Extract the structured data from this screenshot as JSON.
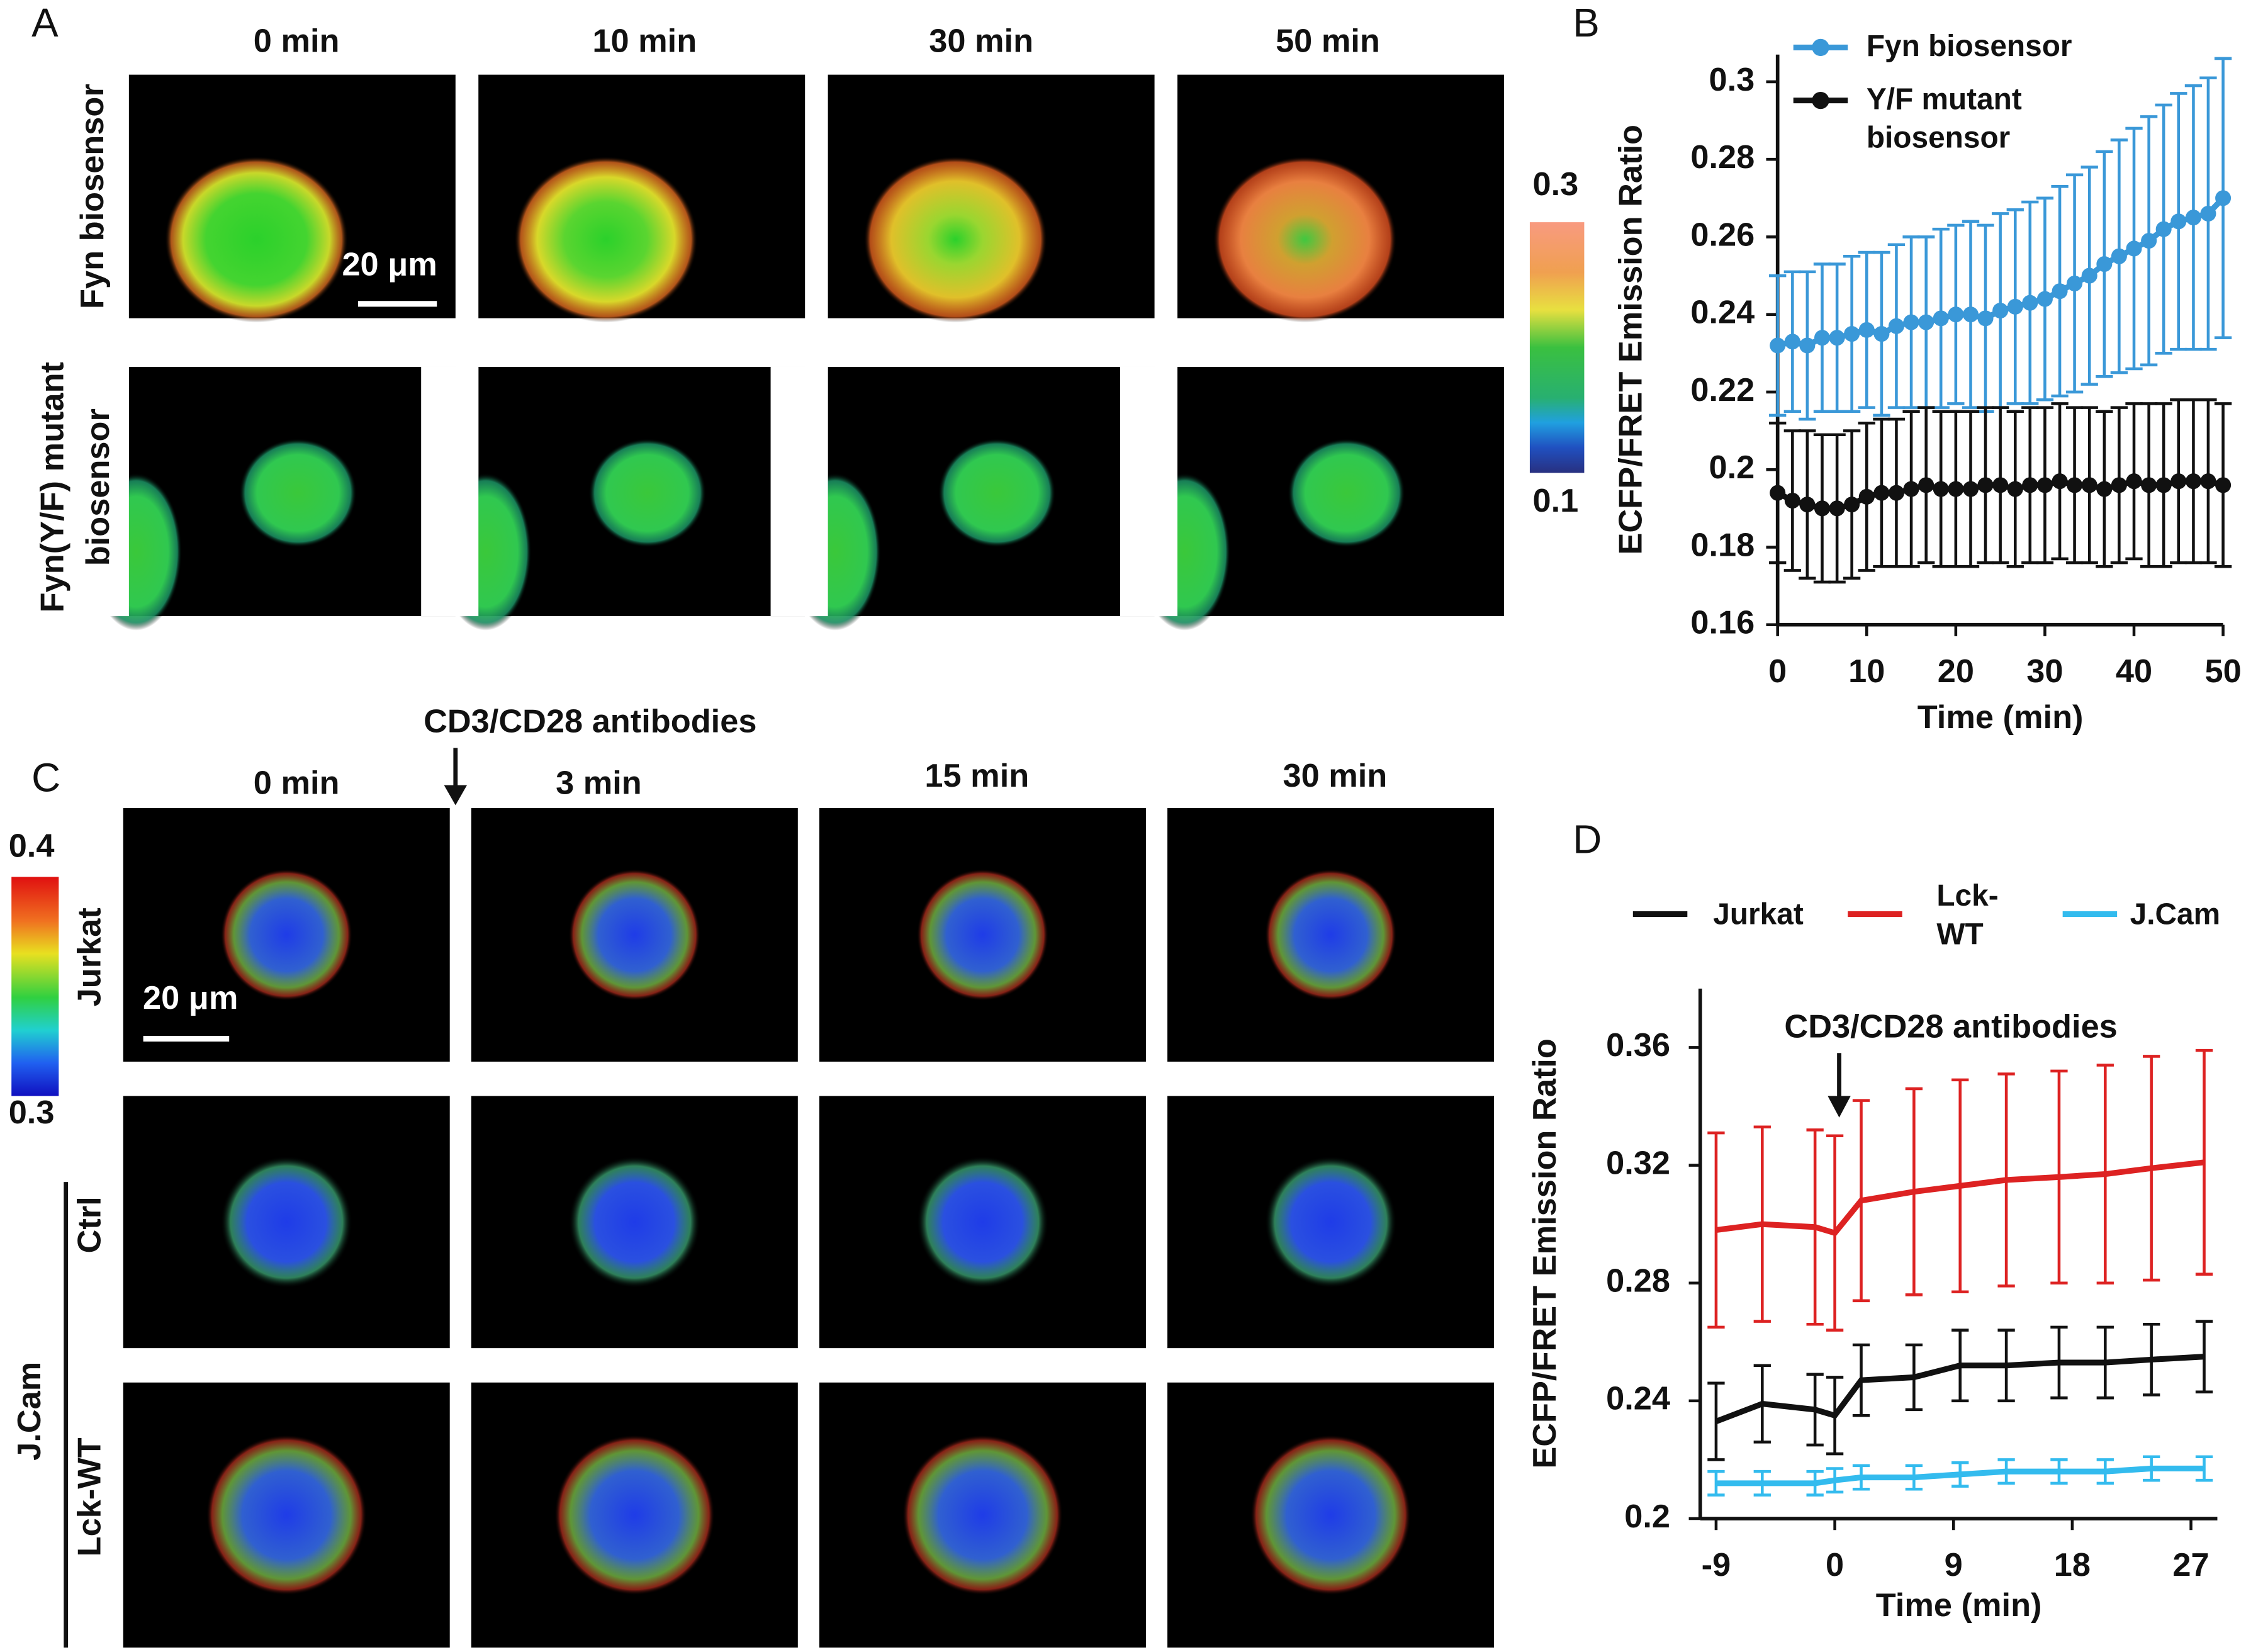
{
  "panels": [
    "A",
    "B",
    "C",
    "D"
  ],
  "panel_a": {
    "times": [
      "0 min",
      "10 min",
      "30 min",
      "50 min"
    ],
    "rows": [
      "Fyn biosensor",
      [
        "Fyn(Y/F) mutant",
        "biosensor"
      ]
    ],
    "scale_bar": "20 μm",
    "colorbar": [
      0.3,
      0.1
    ]
  },
  "panel_c": {
    "stimulus": "CD3/CD28 antibodies",
    "times": [
      "0 min",
      "3 min",
      "15 min",
      "30 min"
    ],
    "rows": [
      "Jurkat",
      "Ctrl",
      "Lck-WT"
    ],
    "group": "J.Cam",
    "scale_bar": "20 μm",
    "colorbar": [
      0.4,
      0.3
    ]
  },
  "chart_data": [
    {
      "type": "line",
      "x_label": "Time (min)",
      "y_label": "ECFP/FRET Emission Ratio",
      "markers": true,
      "xlim": [
        0,
        50
      ],
      "xticks": [
        0,
        10,
        20,
        30,
        40,
        50
      ],
      "ylim": [
        0.16,
        0.307
      ],
      "yticks": [
        0.16,
        0.18,
        0.2,
        0.22,
        0.24,
        0.26,
        0.28,
        0.3
      ],
      "x": [
        0,
        1.67,
        3.33,
        5,
        6.67,
        8.33,
        10,
        11.67,
        13.33,
        15,
        16.67,
        18.33,
        20,
        21.67,
        23.33,
        25,
        26.67,
        28.33,
        30,
        31.67,
        33.33,
        35,
        36.67,
        38.33,
        40,
        41.67,
        43.33,
        45,
        46.67,
        48.33,
        50
      ],
      "series": [
        {
          "name": "Fyn biosensor",
          "color": "#3a98d8",
          "values": [
            0.232,
            0.233,
            0.232,
            0.234,
            0.234,
            0.235,
            0.236,
            0.235,
            0.237,
            0.238,
            0.238,
            0.239,
            0.24,
            0.24,
            0.239,
            0.241,
            0.242,
            0.243,
            0.244,
            0.246,
            0.248,
            0.25,
            0.253,
            0.255,
            0.257,
            0.259,
            0.262,
            0.264,
            0.265,
            0.266,
            0.27
          ],
          "errors": [
            0.018,
            0.018,
            0.019,
            0.019,
            0.019,
            0.02,
            0.02,
            0.021,
            0.021,
            0.022,
            0.022,
            0.023,
            0.023,
            0.024,
            0.024,
            0.025,
            0.025,
            0.026,
            0.026,
            0.027,
            0.028,
            0.028,
            0.029,
            0.03,
            0.031,
            0.032,
            0.032,
            0.033,
            0.034,
            0.035,
            0.036
          ]
        },
        {
          "name": "Y/F mutant biosensor",
          "color": "#111111",
          "values": [
            0.194,
            0.192,
            0.191,
            0.19,
            0.19,
            0.191,
            0.193,
            0.194,
            0.194,
            0.195,
            0.196,
            0.195,
            0.195,
            0.195,
            0.196,
            0.196,
            0.195,
            0.196,
            0.196,
            0.197,
            0.196,
            0.196,
            0.195,
            0.196,
            0.197,
            0.196,
            0.196,
            0.197,
            0.197,
            0.197,
            0.196
          ],
          "errors": [
            0.018,
            0.018,
            0.019,
            0.019,
            0.019,
            0.019,
            0.019,
            0.019,
            0.019,
            0.02,
            0.02,
            0.02,
            0.02,
            0.02,
            0.02,
            0.02,
            0.02,
            0.02,
            0.02,
            0.02,
            0.02,
            0.02,
            0.02,
            0.02,
            0.02,
            0.021,
            0.021,
            0.021,
            0.021,
            0.021,
            0.021
          ]
        }
      ]
    },
    {
      "type": "line",
      "x_label": "Time (min)",
      "y_label": "ECFP/FRET Emission Ratio",
      "markers": false,
      "annotation": "CD3/CD28 antibodies",
      "xlim": [
        -10.2,
        29
      ],
      "xticks": [
        -9,
        0,
        9,
        18,
        27
      ],
      "ylim": [
        0.2,
        0.38
      ],
      "yticks": [
        0.2,
        0.24,
        0.28,
        0.32,
        0.36
      ],
      "x": [
        -9,
        -5.5,
        -1.5,
        0,
        2,
        6,
        9.5,
        13,
        17,
        20.5,
        24,
        28
      ],
      "series": [
        {
          "name": "Jurkat",
          "color": "#111111",
          "values": [
            0.233,
            0.239,
            0.237,
            0.235,
            0.247,
            0.248,
            0.252,
            0.252,
            0.253,
            0.253,
            0.254,
            0.255
          ],
          "errors": [
            0.013,
            0.013,
            0.012,
            0.013,
            0.012,
            0.011,
            0.012,
            0.012,
            0.012,
            0.012,
            0.012,
            0.012
          ]
        },
        {
          "name": "Lck-WT",
          "color": "#dd2222",
          "values": [
            0.298,
            0.3,
            0.299,
            0.297,
            0.308,
            0.311,
            0.313,
            0.315,
            0.316,
            0.317,
            0.319,
            0.321
          ],
          "errors": [
            0.033,
            0.033,
            0.033,
            0.033,
            0.034,
            0.035,
            0.036,
            0.036,
            0.036,
            0.037,
            0.038,
            0.038
          ]
        },
        {
          "name": "J.Cam",
          "color": "#33bbee",
          "values": [
            0.212,
            0.212,
            0.212,
            0.213,
            0.214,
            0.214,
            0.215,
            0.216,
            0.216,
            0.216,
            0.217,
            0.217
          ],
          "errors": [
            0.004,
            0.004,
            0.004,
            0.004,
            0.004,
            0.004,
            0.004,
            0.004,
            0.004,
            0.004,
            0.004,
            0.004
          ]
        }
      ]
    }
  ]
}
